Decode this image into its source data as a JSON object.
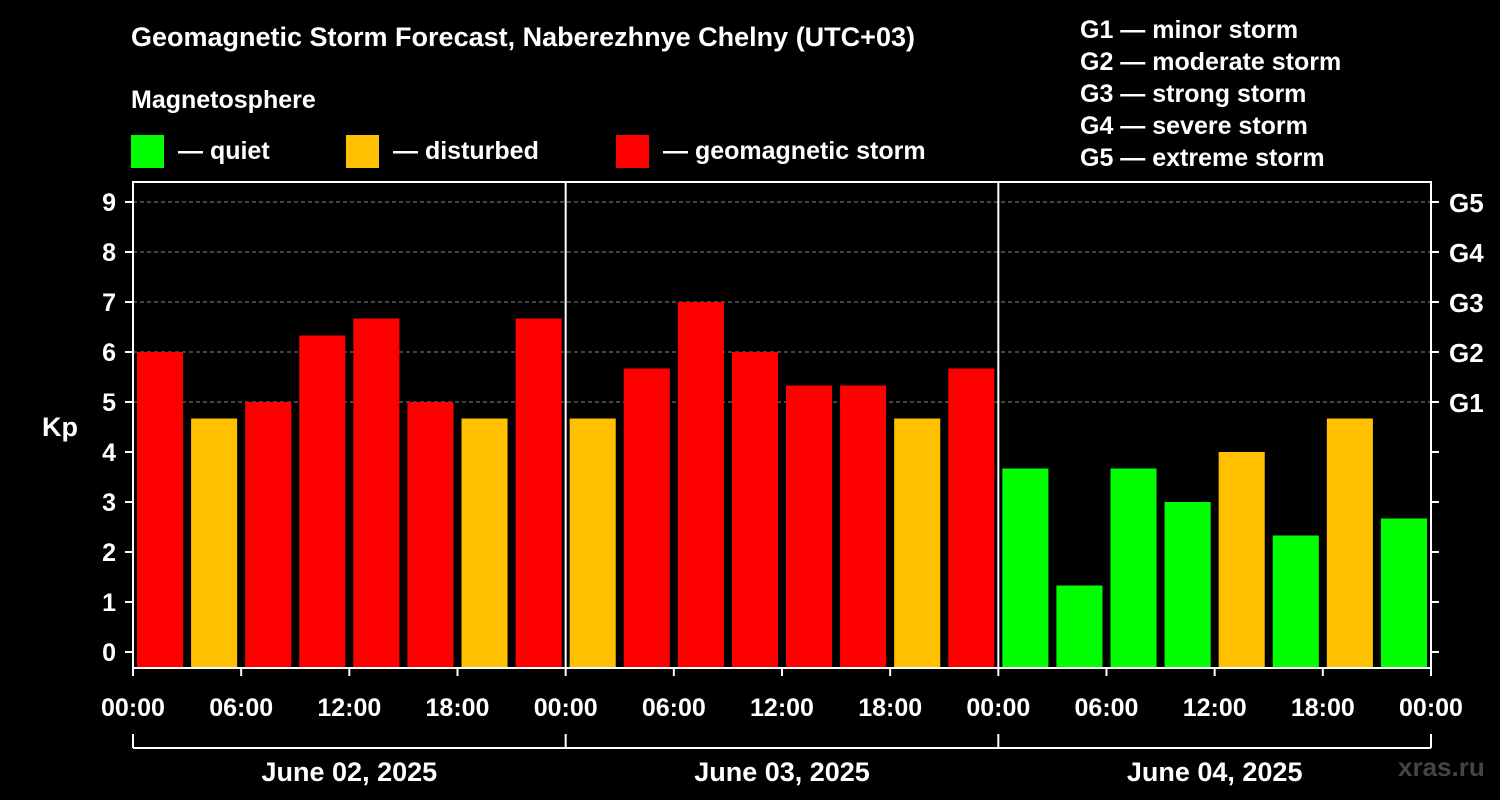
{
  "chart_data": {
    "type": "bar",
    "title": "Geomagnetic Storm Forecast, Naberezhnye Chelny (UTC+03)",
    "ylabel": "Kp",
    "ylim": [
      0,
      9
    ],
    "y_ticks": [
      "0",
      "1",
      "2",
      "3",
      "4",
      "5",
      "6",
      "7",
      "8",
      "9"
    ],
    "y2_ticks": [
      {
        "kp": 5,
        "label": "G1"
      },
      {
        "kp": 6,
        "label": "G2"
      },
      {
        "kp": 7,
        "label": "G3"
      },
      {
        "kp": 8,
        "label": "G4"
      },
      {
        "kp": 9,
        "label": "G5"
      }
    ],
    "x_ticks": [
      "00:00",
      "06:00",
      "12:00",
      "18:00",
      "00:00",
      "06:00",
      "12:00",
      "18:00",
      "00:00",
      "06:00",
      "12:00",
      "18:00",
      "00:00"
    ],
    "days": [
      "June 02, 2025",
      "June 03, 2025",
      "June 04, 2025"
    ],
    "values": [
      6.0,
      4.67,
      5.0,
      6.33,
      6.67,
      5.0,
      4.67,
      6.67,
      4.67,
      5.67,
      7.0,
      6.0,
      5.33,
      5.33,
      4.67,
      5.67,
      3.67,
      1.33,
      3.67,
      3.0,
      4.0,
      2.33,
      4.67,
      2.67
    ],
    "grid": "dashed at Kp 5-9",
    "magnetosphere_label": "Magnetosphere",
    "legend": [
      {
        "label": "— quiet",
        "color": "#00ff00"
      },
      {
        "label": "— disturbed",
        "color": "#ffc000"
      },
      {
        "label": "— geomagnetic storm",
        "color": "#ff0000"
      }
    ],
    "storm_scale": [
      "G1 — minor storm",
      "G2 — moderate storm",
      "G3 — strong storm",
      "G4 — severe storm",
      "G5 — extreme storm"
    ],
    "colors": {
      "quiet": "#00ff00",
      "disturbed": "#ffc000",
      "storm": "#ff0000"
    },
    "watermark": "xras.ru"
  }
}
